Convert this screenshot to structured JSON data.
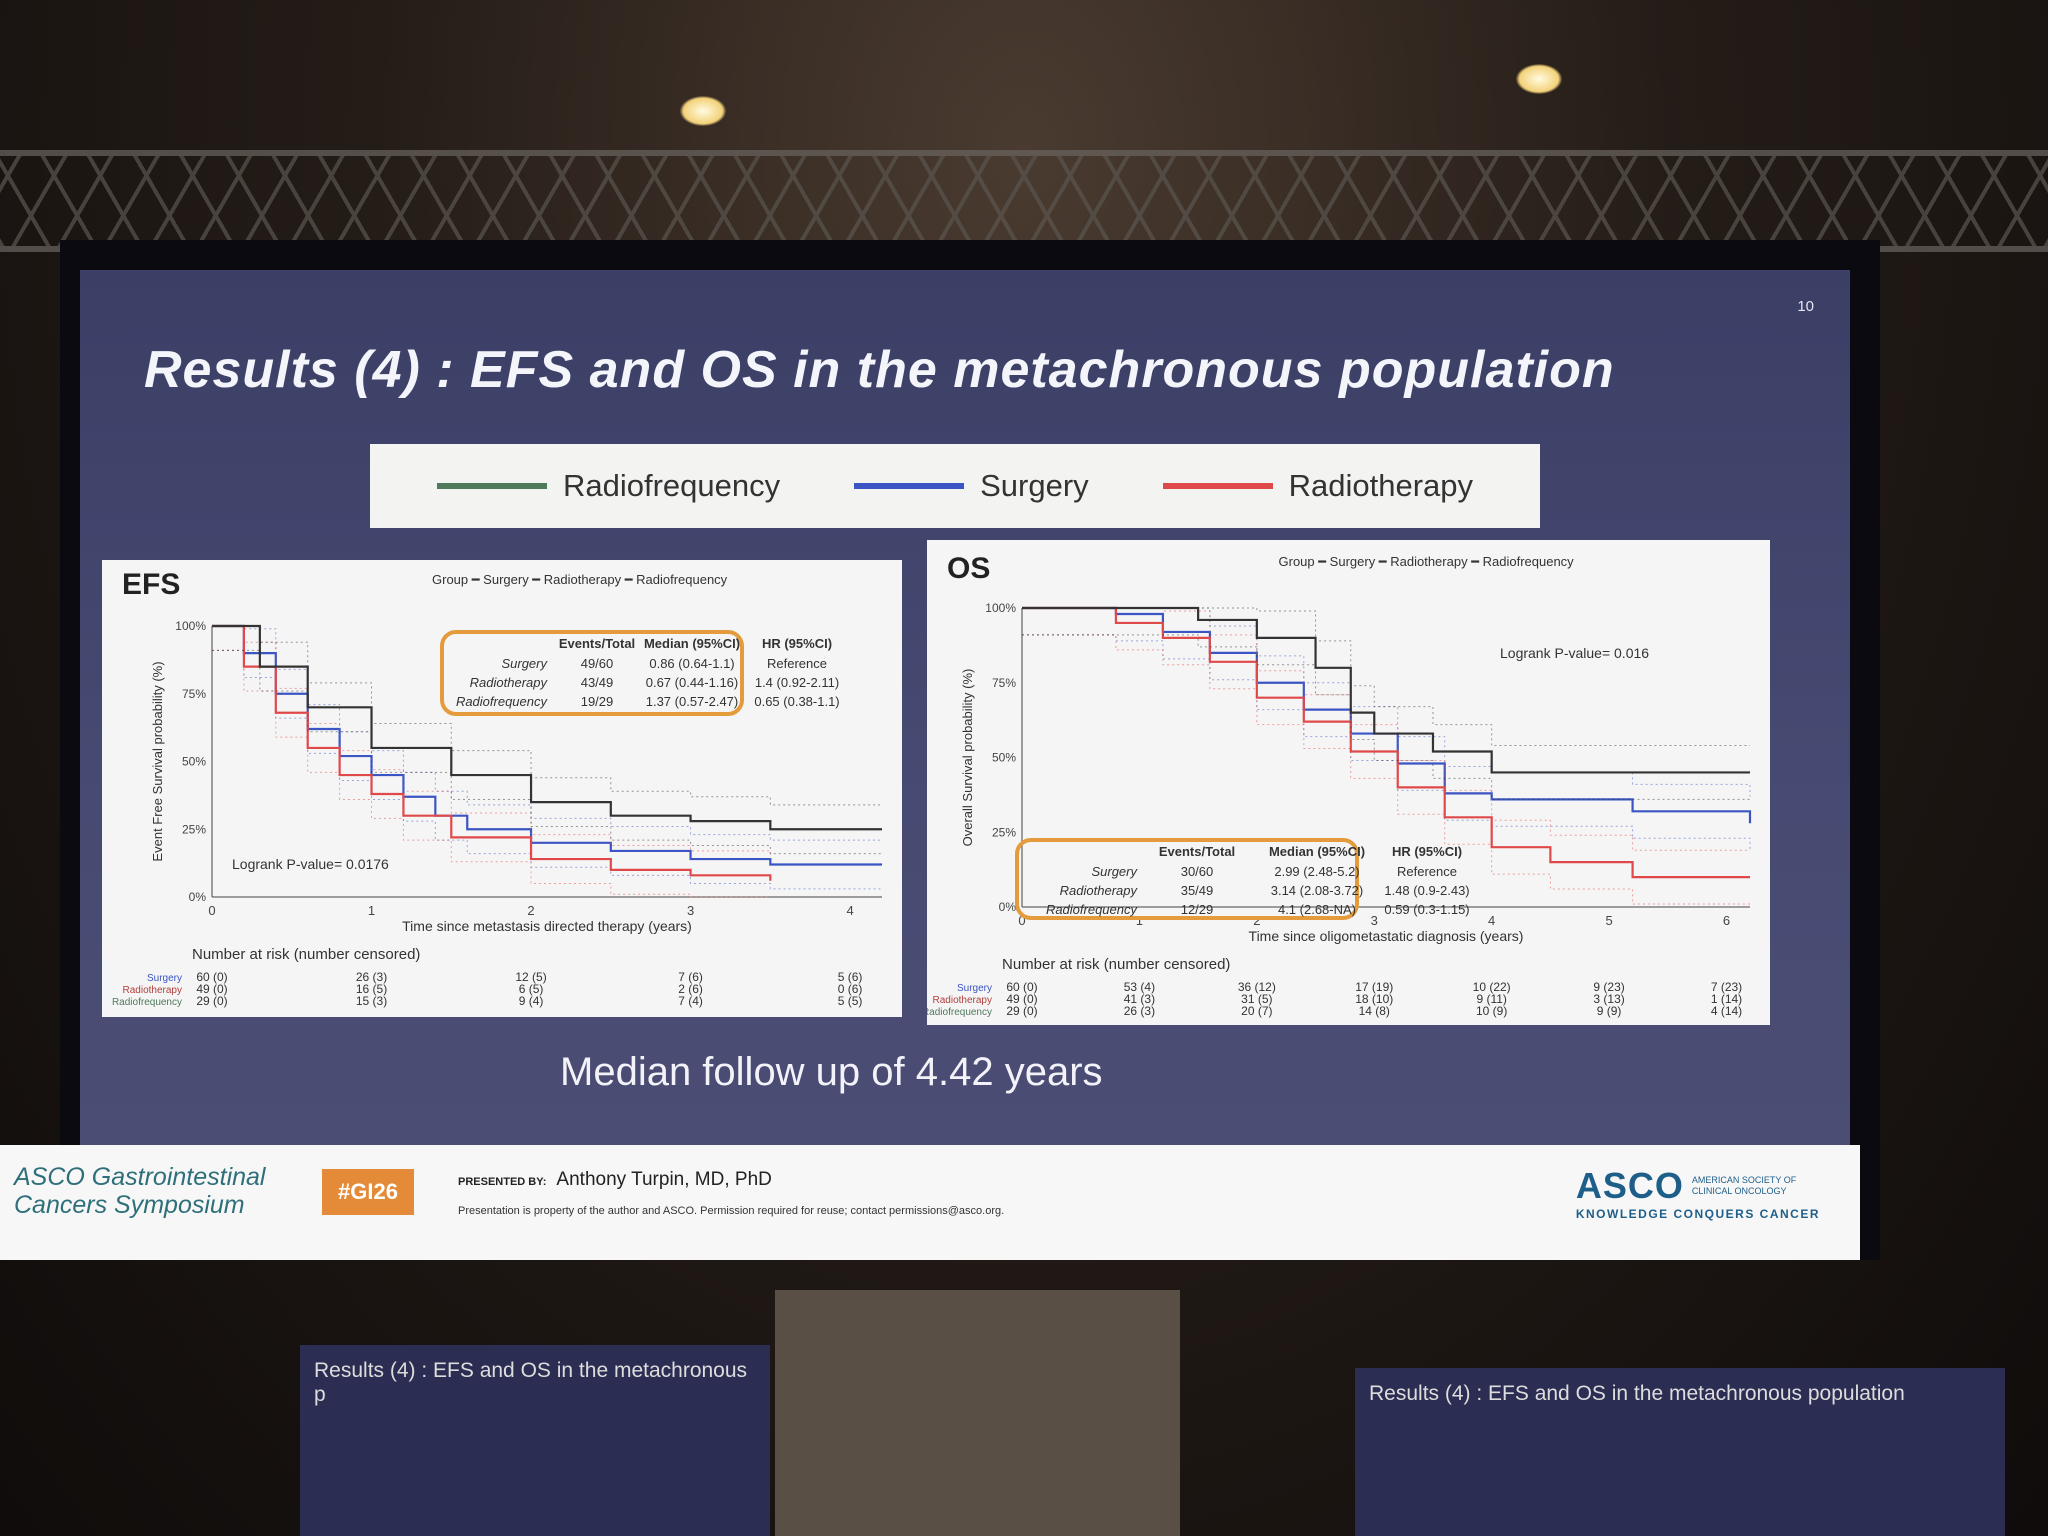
{
  "slide": {
    "page_number": "10",
    "title": "Results (4) : EFS and OS in the metachronous population",
    "legend": [
      {
        "label": "Radiofrequency",
        "color": "#4f7a5c"
      },
      {
        "label": "Surgery",
        "color": "#3b55c4"
      },
      {
        "label": "Radiotherapy",
        "color": "#e0494a"
      }
    ],
    "median_followup": "Median follow up of  4.42 years"
  },
  "footer": {
    "symposium_line1": "ASCO Gastrointestinal",
    "symposium_line2": "Cancers Symposium",
    "hashtag": "#GI26",
    "presented_by_label": "PRESENTED BY:",
    "presenter": "Anthony Turpin, MD, PhD",
    "permission": "Presentation is property of the author and ASCO. Permission required for reuse; contact permissions@asco.org.",
    "asco": "ASCO",
    "asco_small": "AMERICAN SOCIETY OF CLINICAL ONCOLOGY",
    "asco_tagline": "KNOWLEDGE CONQUERS CANCER"
  },
  "thumbnails": {
    "left_title": "Results (4) : EFS and OS in the metachronous p",
    "right_title": "Results (4) : EFS and OS in the metachronous population"
  },
  "chart_data": [
    {
      "type": "line",
      "title": "EFS",
      "group_legend": "Group ━ Surgery ━ Radiotherapy ━ Radiofrequency",
      "xlabel": "Time since metastasis directed therapy (years)",
      "ylabel": "Event Free Survival probability (%)",
      "xlim": [
        0,
        4.2
      ],
      "ylim": [
        0,
        100
      ],
      "xticks": [
        "0",
        "1",
        "2",
        "3",
        "4"
      ],
      "yticks": [
        "0%",
        "25%",
        "50%",
        "75%",
        "100%"
      ],
      "annotation": "Logrank P-value= 0.0176",
      "series": [
        {
          "name": "Surgery",
          "color": "#3b55c4",
          "x": [
            0,
            0.2,
            0.4,
            0.6,
            0.8,
            1,
            1.2,
            1.4,
            1.6,
            2,
            2.5,
            3,
            3.5,
            4.2
          ],
          "y": [
            100,
            90,
            75,
            62,
            52,
            45,
            37,
            30,
            25,
            20,
            17,
            14,
            12,
            12
          ]
        },
        {
          "name": "Radiotherapy",
          "color": "#e0494a",
          "x": [
            0,
            0.2,
            0.4,
            0.6,
            0.8,
            1,
            1.2,
            1.5,
            2,
            2.5,
            3,
            3.5
          ],
          "y": [
            100,
            85,
            68,
            55,
            45,
            38,
            30,
            22,
            14,
            10,
            8,
            6
          ]
        },
        {
          "name": "Radiofrequency",
          "color": "#333333",
          "x": [
            0,
            0.3,
            0.6,
            1,
            1.5,
            2,
            2.5,
            3,
            3.5,
            4.2
          ],
          "y": [
            100,
            85,
            70,
            55,
            45,
            35,
            30,
            28,
            25,
            25
          ]
        }
      ],
      "table": {
        "headers": [
          "",
          "Events/Total",
          "Median (95%CI)",
          "HR (95%CI)"
        ],
        "rows": [
          [
            "Surgery",
            "49/60",
            "0.86 (0.64-1.1)",
            "Reference"
          ],
          [
            "Radiotherapy",
            "43/49",
            "0.67 (0.44-1.16)",
            "1.4 (0.92-2.11)"
          ],
          [
            "Radiofrequency",
            "19/29",
            "1.37 (0.57-2.47)",
            "0.65 (0.38-1.1)"
          ]
        ]
      },
      "risk_title": "Number at risk (number censored)",
      "risk": [
        {
          "name": "Surgery",
          "values": [
            "60 (0)",
            "26 (3)",
            "12 (5)",
            "7 (6)",
            "5 (6)"
          ]
        },
        {
          "name": "Radiotherapy",
          "values": [
            "49 (0)",
            "16 (5)",
            "6 (5)",
            "2 (6)",
            "0 (6)"
          ]
        },
        {
          "name": "Radiofrequency",
          "values": [
            "29 (0)",
            "15 (3)",
            "9 (4)",
            "7 (4)",
            "5 (5)"
          ]
        }
      ]
    },
    {
      "type": "line",
      "title": "OS",
      "group_legend": "Group ━ Surgery ━ Radiotherapy ━ Radiofrequency",
      "xlabel": "Time since oligometastatic diagnosis (years)",
      "ylabel": "Overall Survival probability (%)",
      "xlim": [
        0,
        6.2
      ],
      "ylim": [
        0,
        100
      ],
      "xticks": [
        "0",
        "1",
        "2",
        "3",
        "4",
        "5",
        "6"
      ],
      "yticks": [
        "0%",
        "25%",
        "50%",
        "75%",
        "100%"
      ],
      "annotation": "Logrank P-value= 0.016",
      "series": [
        {
          "name": "Surgery",
          "color": "#3b55c4",
          "x": [
            0,
            0.8,
            1.2,
            1.6,
            2,
            2.4,
            2.8,
            3.2,
            3.6,
            4,
            5,
            5.2,
            6.2
          ],
          "y": [
            100,
            98,
            92,
            85,
            75,
            66,
            58,
            48,
            38,
            36,
            36,
            32,
            28
          ]
        },
        {
          "name": "Radiotherapy",
          "color": "#e0494a",
          "x": [
            0,
            0.8,
            1.2,
            1.6,
            2,
            2.4,
            2.8,
            3.2,
            3.6,
            4,
            4.5,
            5.2,
            6.2
          ],
          "y": [
            100,
            95,
            90,
            82,
            70,
            62,
            52,
            40,
            30,
            20,
            15,
            10,
            10
          ]
        },
        {
          "name": "Radiofrequency",
          "color": "#333333",
          "x": [
            0,
            1,
            1.5,
            2,
            2.5,
            2.8,
            3,
            3.5,
            4,
            4.5,
            6.2
          ],
          "y": [
            100,
            100,
            96,
            90,
            80,
            65,
            58,
            52,
            45,
            45,
            45
          ]
        }
      ],
      "table": {
        "headers": [
          "",
          "Events/Total",
          "Median (95%CI)",
          "HR (95%CI)"
        ],
        "rows": [
          [
            "Surgery",
            "30/60",
            "2.99 (2.48-5.2)",
            "Reference"
          ],
          [
            "Radiotherapy",
            "35/49",
            "3.14 (2.08-3.72)",
            "1.48 (0.9-2.43)"
          ],
          [
            "Radiofrequency",
            "12/29",
            "4.1 (2.68-NA)",
            "0.59 (0.3-1.15)"
          ]
        ]
      },
      "risk_title": "Number at risk (number censored)",
      "risk": [
        {
          "name": "Surgery",
          "values": [
            "60 (0)",
            "53 (4)",
            "36 (12)",
            "17 (19)",
            "10 (22)",
            "9 (23)",
            "7 (23)"
          ]
        },
        {
          "name": "Radiotherapy",
          "values": [
            "49 (0)",
            "41 (3)",
            "31 (5)",
            "18 (10)",
            "9 (11)",
            "3 (13)",
            "1 (14)"
          ]
        },
        {
          "name": "Radiofrequency",
          "values": [
            "29 (0)",
            "26 (3)",
            "20 (7)",
            "14 (8)",
            "10 (9)",
            "9 (9)",
            "4 (14)"
          ]
        }
      ]
    }
  ]
}
